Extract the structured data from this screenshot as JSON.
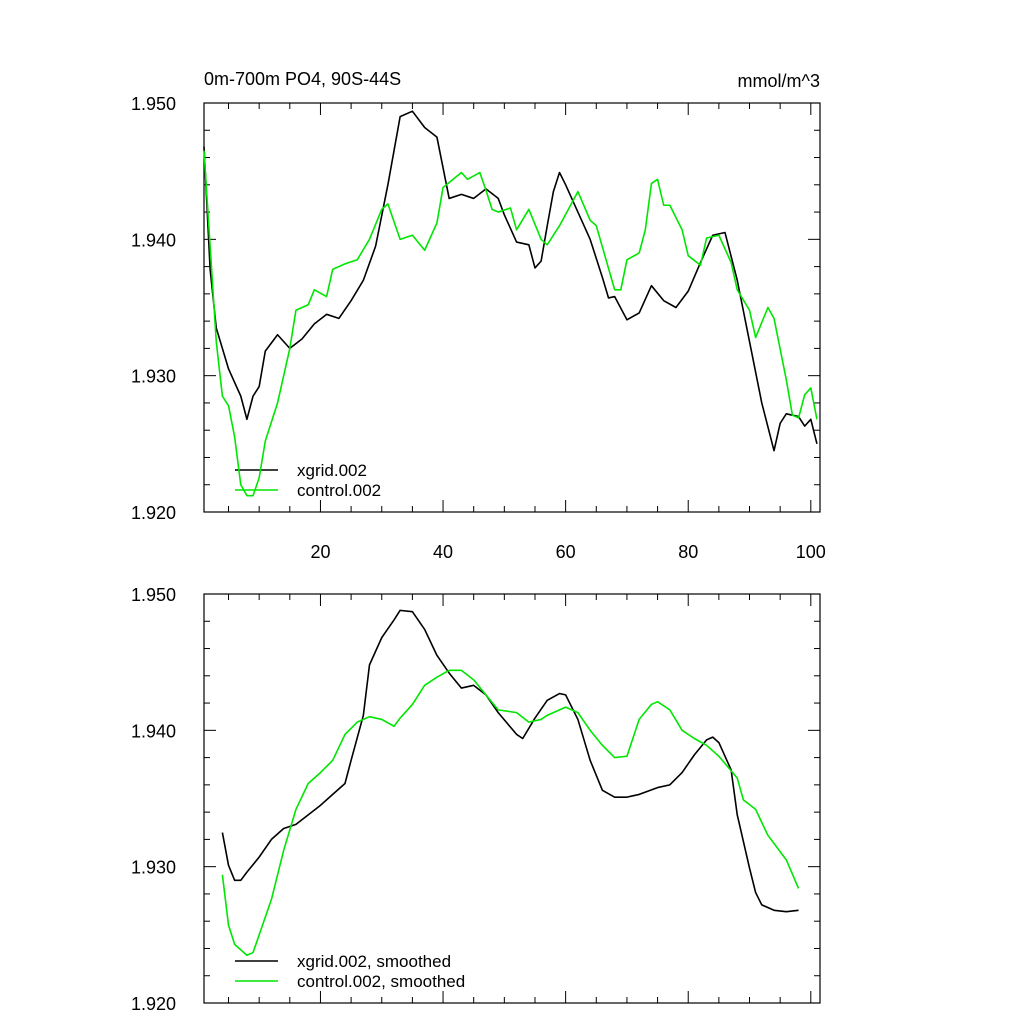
{
  "chart_data": [
    {
      "type": "line",
      "title": "0m-700m PO4, 90S-44S",
      "units": "mmol/m^3",
      "xlim": [
        1,
        101.5
      ],
      "xticks": [
        20,
        40,
        60,
        80,
        100
      ],
      "ylim": [
        1.92,
        1.95
      ],
      "yticks": [
        {
          "value": 1.92,
          "label": "1.920"
        },
        {
          "value": 1.93,
          "label": "1.930"
        },
        {
          "value": 1.94,
          "label": "1.940"
        },
        {
          "value": 1.95,
          "label": "1.950"
        }
      ],
      "legend": "lower left",
      "series": [
        {
          "name": "xgrid.002",
          "color": "#000000",
          "x": [
            1,
            2,
            3,
            5,
            7,
            8,
            9,
            10,
            11,
            13,
            15,
            17,
            19,
            21,
            23,
            25,
            27,
            29,
            31,
            33,
            35,
            37,
            39,
            41,
            43,
            45,
            47,
            49,
            50,
            52,
            54,
            55,
            56,
            57,
            58,
            59,
            60,
            62,
            64,
            66,
            67,
            68,
            70,
            72,
            74,
            76,
            78,
            80,
            82,
            84,
            86,
            88,
            90,
            92,
            94,
            95,
            96,
            98,
            99,
            100,
            101
          ],
          "values": [
            1.9468,
            1.9378,
            1.9335,
            1.9305,
            1.9285,
            1.9268,
            1.9285,
            1.9292,
            1.9318,
            1.933,
            1.932,
            1.9327,
            1.9338,
            1.9345,
            1.9342,
            1.9355,
            1.937,
            1.9395,
            1.944,
            1.949,
            1.9494,
            1.9482,
            1.9475,
            1.943,
            1.9433,
            1.943,
            1.9437,
            1.943,
            1.9418,
            1.9398,
            1.9396,
            1.9379,
            1.9384,
            1.941,
            1.9435,
            1.9449,
            1.944,
            1.942,
            1.94,
            1.9372,
            1.9357,
            1.9358,
            1.9341,
            1.9346,
            1.9366,
            1.9355,
            1.935,
            1.9362,
            1.9383,
            1.9403,
            1.9405,
            1.937,
            1.9325,
            1.928,
            1.9245,
            1.9265,
            1.9272,
            1.927,
            1.9263,
            1.9268,
            1.925
          ]
        },
        {
          "name": "control.002",
          "color": "#00e600",
          "x": [
            1,
            3,
            4,
            5,
            6,
            7,
            8,
            9,
            10,
            11,
            13,
            15,
            16,
            18,
            19,
            21,
            22,
            24,
            26,
            28,
            30,
            31,
            33,
            35,
            37,
            39,
            40,
            43,
            44,
            46,
            47,
            48,
            49,
            51,
            52,
            54,
            56,
            57,
            59,
            62,
            64,
            65,
            68,
            69,
            70,
            72,
            73,
            74,
            75,
            76,
            77,
            79,
            80,
            82,
            83,
            85,
            87,
            88,
            90,
            91,
            93,
            94,
            96,
            97,
            98,
            99,
            100,
            101
          ],
          "values": [
            1.9465,
            1.9325,
            1.9285,
            1.9278,
            1.9255,
            1.922,
            1.9212,
            1.9212,
            1.9225,
            1.9252,
            1.928,
            1.932,
            1.9348,
            1.9352,
            1.9363,
            1.9358,
            1.9378,
            1.9382,
            1.9385,
            1.94,
            1.9422,
            1.9426,
            1.94,
            1.9403,
            1.9392,
            1.9412,
            1.9438,
            1.9449,
            1.9444,
            1.9449,
            1.9436,
            1.9422,
            1.942,
            1.9423,
            1.9407,
            1.9422,
            1.94,
            1.9396,
            1.941,
            1.9435,
            1.9414,
            1.941,
            1.9363,
            1.9363,
            1.9385,
            1.939,
            1.9407,
            1.9441,
            1.9444,
            1.9425,
            1.9425,
            1.9407,
            1.9388,
            1.9381,
            1.9401,
            1.9403,
            1.9383,
            1.9363,
            1.9348,
            1.9328,
            1.935,
            1.9342,
            1.9297,
            1.9271,
            1.9269,
            1.9286,
            1.9291,
            1.9268
          ]
        }
      ]
    },
    {
      "type": "line",
      "xlim": [
        1,
        101.5
      ],
      "xticks": [
        20,
        40,
        60,
        80,
        100
      ],
      "ylim": [
        1.92,
        1.95
      ],
      "yticks": [
        {
          "value": 1.92,
          "label": "1.920"
        },
        {
          "value": 1.93,
          "label": "1.930"
        },
        {
          "value": 1.94,
          "label": "1.940"
        },
        {
          "value": 1.95,
          "label": "1.950"
        }
      ],
      "legend": "lower left",
      "series": [
        {
          "name": "xgrid.002, smoothed",
          "color": "#000000",
          "x": [
            4,
            5,
            6,
            7,
            8,
            10,
            12,
            14,
            16,
            18,
            20,
            22,
            24,
            25,
            27,
            28,
            30,
            32,
            33,
            35,
            37,
            39,
            41,
            43,
            45,
            47,
            49,
            52,
            53,
            55,
            57,
            59,
            60,
            62,
            64,
            66,
            68,
            70,
            72,
            75,
            77,
            79,
            81,
            83,
            84,
            85,
            87,
            88,
            90,
            91,
            92,
            94,
            96,
            98
          ],
          "values": [
            1.9325,
            1.9301,
            1.929,
            1.929,
            1.9296,
            1.9307,
            1.932,
            1.9328,
            1.9331,
            1.9338,
            1.9345,
            1.9353,
            1.9361,
            1.9378,
            1.9411,
            1.9448,
            1.9468,
            1.9481,
            1.9488,
            1.9487,
            1.9474,
            1.9455,
            1.9442,
            1.9431,
            1.9433,
            1.9426,
            1.9413,
            1.9397,
            1.9394,
            1.9409,
            1.9422,
            1.9427,
            1.9426,
            1.9408,
            1.9378,
            1.9356,
            1.9351,
            1.9351,
            1.9353,
            1.9358,
            1.936,
            1.9369,
            1.9382,
            1.9393,
            1.9395,
            1.9391,
            1.9371,
            1.9338,
            1.9299,
            1.9281,
            1.9272,
            1.9268,
            1.9267,
            1.9268
          ]
        },
        {
          "name": "control.002, smoothed",
          "color": "#00e600",
          "x": [
            4,
            5,
            6,
            8,
            9,
            10,
            12,
            14,
            16,
            18,
            20,
            22,
            24,
            26,
            28,
            30,
            32,
            33,
            35,
            37,
            39,
            41,
            43,
            45,
            47,
            49,
            52,
            54,
            56,
            57,
            60,
            62,
            64,
            66,
            68,
            70,
            72,
            74,
            75,
            77,
            79,
            81,
            83,
            85,
            88,
            89,
            91,
            93,
            96,
            98
          ],
          "values": [
            1.9294,
            1.9257,
            1.9243,
            1.9235,
            1.9237,
            1.925,
            1.9276,
            1.9312,
            1.9342,
            1.9361,
            1.9369,
            1.9378,
            1.9397,
            1.9406,
            1.941,
            1.9408,
            1.9403,
            1.9409,
            1.9419,
            1.9433,
            1.9439,
            1.9444,
            1.9444,
            1.9437,
            1.9426,
            1.9415,
            1.9413,
            1.9406,
            1.9408,
            1.9411,
            1.9417,
            1.9413,
            1.94,
            1.9389,
            1.938,
            1.9381,
            1.9408,
            1.9419,
            1.9421,
            1.9415,
            1.94,
            1.9394,
            1.9389,
            1.9381,
            1.9365,
            1.9349,
            1.9342,
            1.9323,
            1.9305,
            1.9284
          ]
        }
      ]
    }
  ]
}
